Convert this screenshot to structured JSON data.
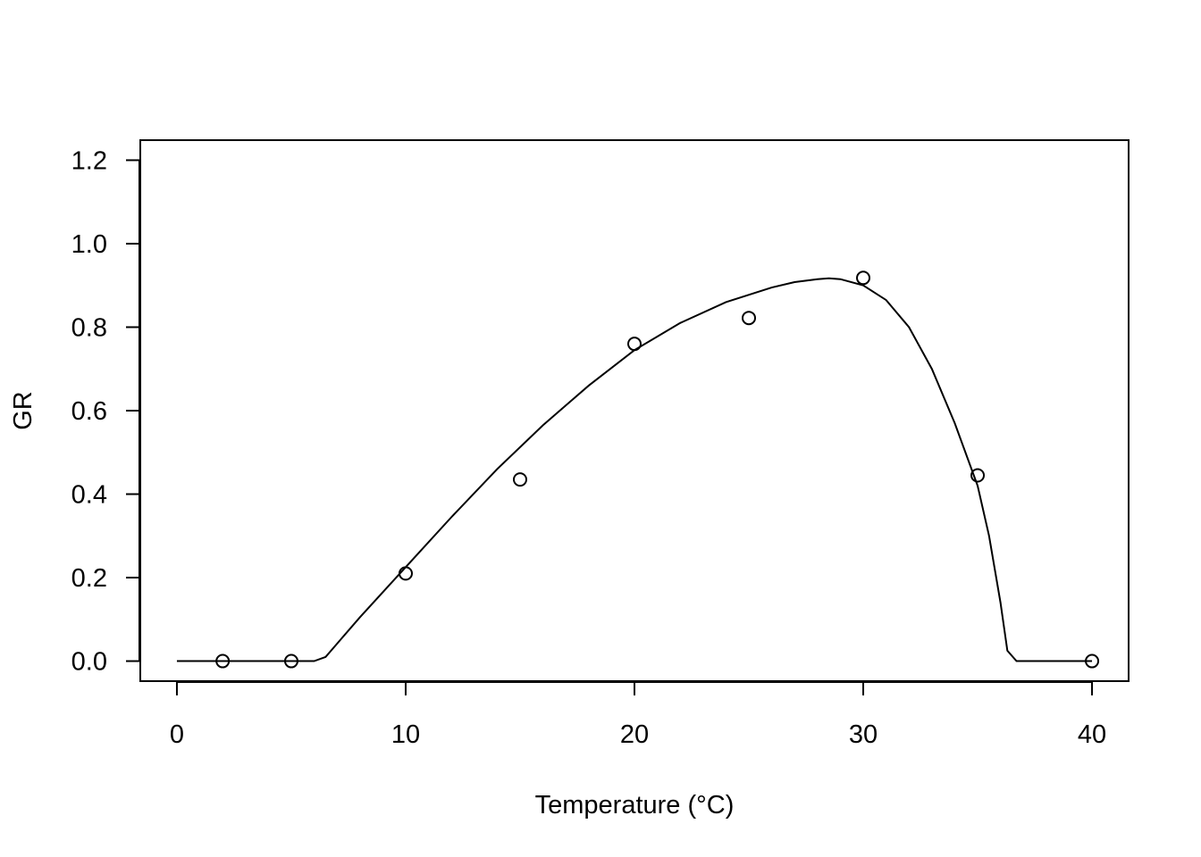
{
  "chart_data": {
    "type": "scatter",
    "title": "",
    "xlabel": "Temperature (°C)",
    "ylabel": "GR",
    "xlim": [
      -1.6,
      41.6
    ],
    "ylim": [
      -0.048,
      1.248
    ],
    "x_ticks": [
      0,
      10,
      20,
      30,
      40
    ],
    "y_ticks": [
      0.0,
      0.2,
      0.4,
      0.6,
      0.8,
      1.0,
      1.2
    ],
    "x_tick_labels": [
      "0",
      "10",
      "20",
      "30",
      "40"
    ],
    "y_tick_labels": [
      "0.0",
      "0.2",
      "0.4",
      "0.6",
      "0.8",
      "1.0",
      "1.2"
    ],
    "grid": false,
    "line_color": "#000000",
    "points": {
      "x": [
        2,
        5,
        10,
        15,
        20,
        25,
        30,
        35,
        40
      ],
      "y": [
        0.0,
        0.0,
        0.21,
        0.435,
        0.76,
        0.822,
        0.918,
        0.445,
        0.0
      ]
    },
    "fit_curve": {
      "x": [
        0,
        6,
        6.5,
        8,
        10,
        12,
        14,
        16,
        18,
        20,
        22,
        24,
        26,
        27,
        28,
        28.5,
        29,
        30,
        31,
        32,
        33,
        34,
        35,
        35.5,
        36,
        36.3,
        36.7,
        37,
        40
      ],
      "y": [
        0,
        0,
        0.01,
        0.105,
        0.225,
        0.345,
        0.46,
        0.565,
        0.66,
        0.745,
        0.81,
        0.86,
        0.895,
        0.908,
        0.915,
        0.917,
        0.915,
        0.9,
        0.865,
        0.8,
        0.7,
        0.57,
        0.42,
        0.3,
        0.14,
        0.025,
        0.0,
        0.0,
        0.0
      ]
    }
  }
}
